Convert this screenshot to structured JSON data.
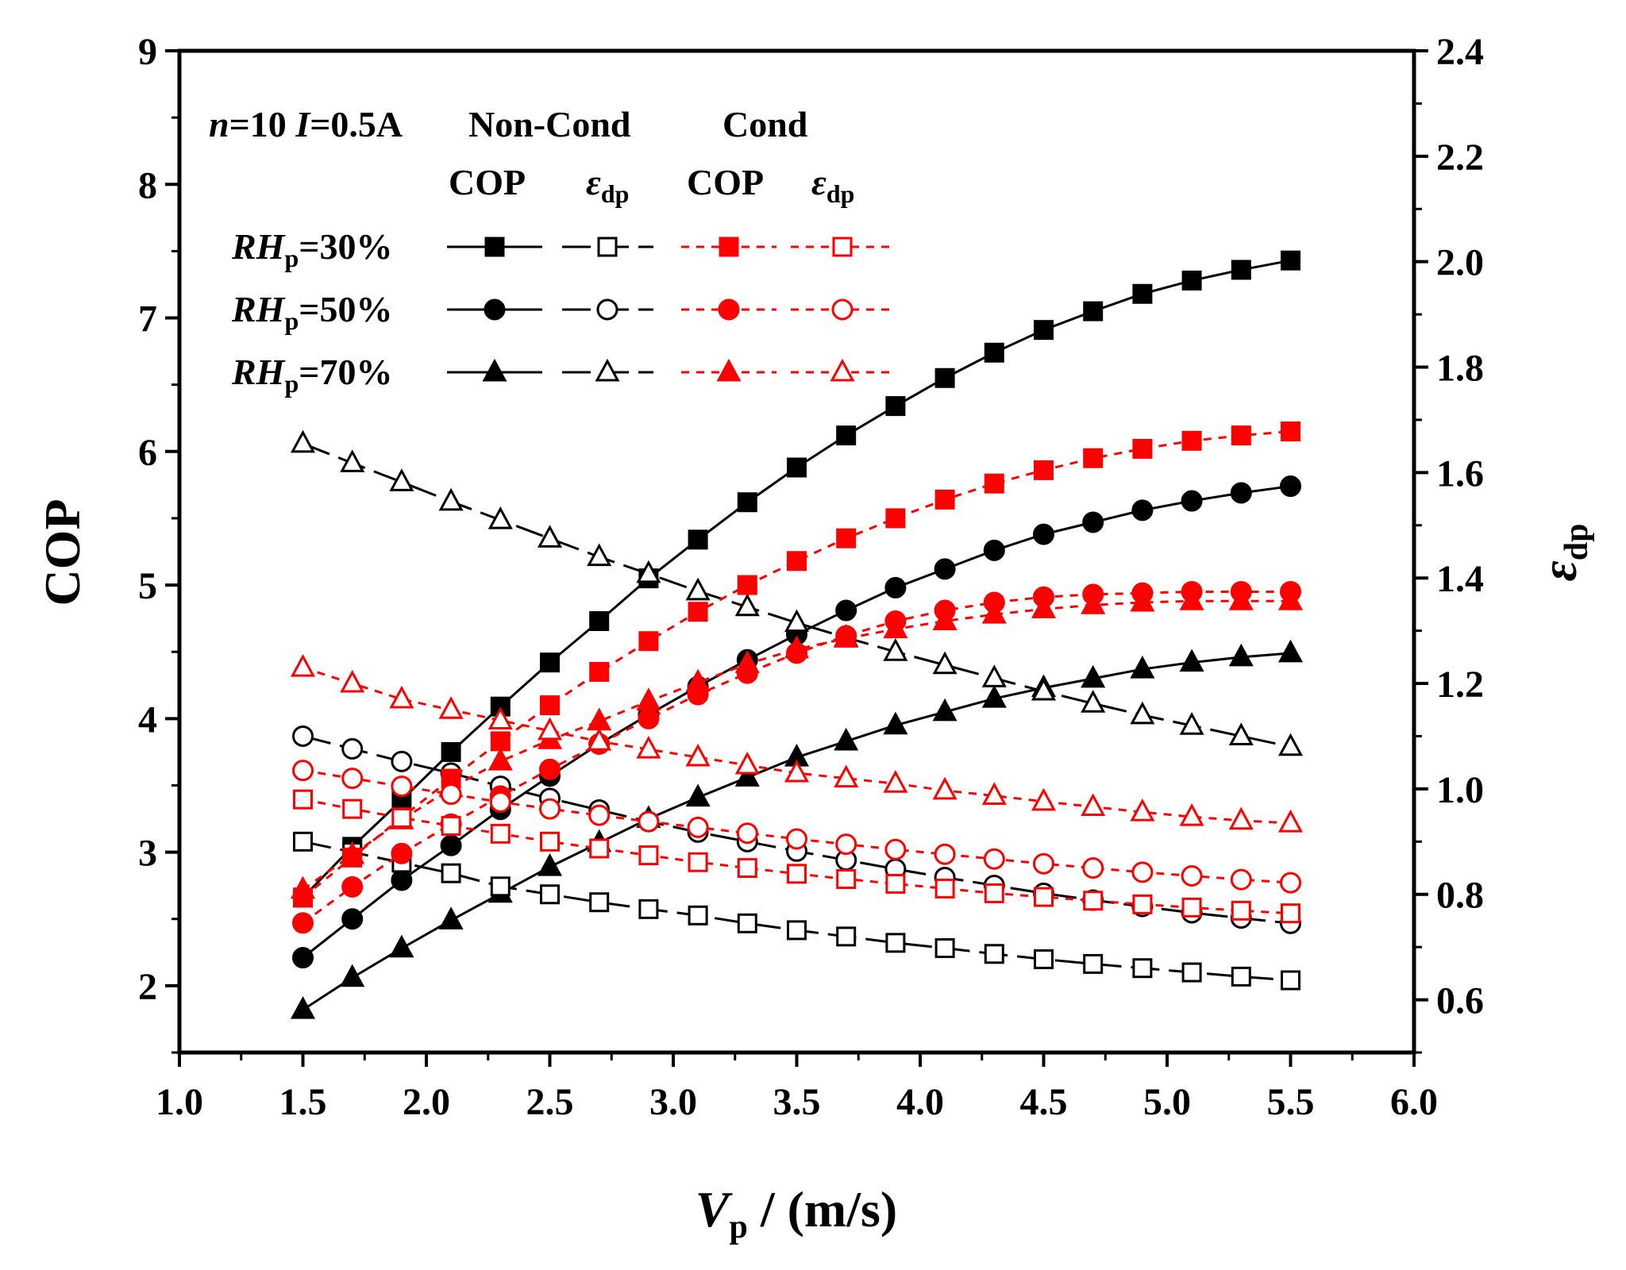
{
  "chart_data": {
    "type": "line",
    "xlabel_main": "V",
    "xlabel_sub": "p",
    "xlabel_unit": " / (m/s)",
    "ylabel": "COP",
    "y2label_main": "ε",
    "y2label_sub": "dp",
    "xlim": [
      1.0,
      6.0
    ],
    "ylim": [
      1.5,
      9
    ],
    "y2lim": [
      0.5,
      2.4
    ],
    "x_ticks": [
      "1.0",
      "1.5",
      "2.0",
      "2.5",
      "3.0",
      "3.5",
      "4.0",
      "4.5",
      "5.0",
      "5.5",
      "6.0"
    ],
    "y_ticks": [
      "2",
      "3",
      "4",
      "5",
      "6",
      "7",
      "8",
      "9"
    ],
    "y2_ticks": [
      "0.6",
      "0.8",
      "1.0",
      "1.2",
      "1.4",
      "1.6",
      "1.8",
      "2.0",
      "2.2",
      "2.4"
    ],
    "x": [
      1.5,
      1.7,
      1.9,
      2.1,
      2.3,
      2.5,
      2.7,
      2.9,
      3.1,
      3.3,
      3.5,
      3.7,
      3.9,
      4.1,
      4.3,
      4.5,
      4.7,
      4.9,
      5.1,
      5.3,
      5.5
    ],
    "legend": {
      "condition_n": "n",
      "condition_n_val": "=10 ",
      "condition_i": "I",
      "condition_i_val": "=0.5A",
      "group_noncond": "Non-Cond",
      "group_cond": "Cond",
      "col_cop": "COP",
      "col_eps": "ε",
      "col_eps_sub": "dp",
      "rh_main": "RH",
      "rh_sub": "p",
      "rows": [
        "=30%",
        "=50%",
        "=70%"
      ]
    },
    "series": [
      {
        "name": "RHp=30% Non-Cond COP",
        "axis": "left",
        "marker": "square",
        "filled": true,
        "color": "#000000",
        "dash": "solid",
        "values": [
          2.66,
          3.04,
          3.39,
          3.75,
          4.09,
          4.42,
          4.73,
          5.05,
          5.34,
          5.62,
          5.88,
          6.12,
          6.34,
          6.55,
          6.74,
          6.91,
          7.05,
          7.18,
          7.28,
          7.36,
          7.43
        ]
      },
      {
        "name": "RHp=50% Non-Cond COP",
        "axis": "left",
        "marker": "circle",
        "filled": true,
        "color": "#000000",
        "dash": "solid",
        "values": [
          2.21,
          2.5,
          2.79,
          3.05,
          3.32,
          3.57,
          3.81,
          4.03,
          4.24,
          4.44,
          4.63,
          4.81,
          4.98,
          5.12,
          5.26,
          5.38,
          5.47,
          5.56,
          5.63,
          5.69,
          5.74
        ]
      },
      {
        "name": "RHp=70% Non-Cond COP",
        "axis": "left",
        "marker": "triangle",
        "filled": true,
        "color": "#000000",
        "dash": "solid",
        "values": [
          1.82,
          2.06,
          2.28,
          2.49,
          2.69,
          2.89,
          3.07,
          3.25,
          3.41,
          3.56,
          3.71,
          3.83,
          3.95,
          4.05,
          4.15,
          4.23,
          4.3,
          4.37,
          4.42,
          4.46,
          4.49
        ]
      },
      {
        "name": "RHp=30% Non-Cond εdp",
        "axis": "right",
        "marker": "square",
        "filled": false,
        "color": "#000000",
        "dash": "longdash",
        "values": [
          0.9,
          0.88,
          0.86,
          0.84,
          0.815,
          0.8,
          0.785,
          0.772,
          0.76,
          0.745,
          0.732,
          0.72,
          0.708,
          0.698,
          0.687,
          0.677,
          0.668,
          0.66,
          0.652,
          0.644,
          0.637
        ]
      },
      {
        "name": "RHp=50% Non-Cond εdp",
        "axis": "right",
        "marker": "circle",
        "filled": false,
        "color": "#000000",
        "dash": "longdash",
        "values": [
          1.1,
          1.076,
          1.052,
          1.03,
          1.005,
          0.982,
          0.96,
          0.938,
          0.918,
          0.9,
          0.882,
          0.865,
          0.848,
          0.832,
          0.817,
          0.802,
          0.789,
          0.777,
          0.765,
          0.755,
          0.745
        ]
      },
      {
        "name": "RHp=70% Non-Cond εdp",
        "axis": "right",
        "marker": "triangle",
        "filled": false,
        "color": "#000000",
        "dash": "longdash",
        "values": [
          1.655,
          1.618,
          1.582,
          1.545,
          1.51,
          1.475,
          1.44,
          1.408,
          1.375,
          1.345,
          1.315,
          1.287,
          1.26,
          1.235,
          1.21,
          1.185,
          1.162,
          1.14,
          1.12,
          1.1,
          1.08
        ]
      },
      {
        "name": "RHp=30% Cond COP",
        "axis": "left",
        "marker": "square",
        "filled": true,
        "color": "#ff0000",
        "dash": "shortdash",
        "values": [
          2.66,
          2.96,
          3.26,
          3.55,
          3.83,
          4.1,
          4.35,
          4.58,
          4.8,
          5.0,
          5.18,
          5.35,
          5.5,
          5.64,
          5.76,
          5.86,
          5.95,
          6.02,
          6.08,
          6.12,
          6.15
        ]
      },
      {
        "name": "RHp=50% Cond COP",
        "axis": "left",
        "marker": "circle",
        "filled": true,
        "color": "#ff0000",
        "dash": "shortdash",
        "values": [
          2.47,
          2.74,
          2.99,
          3.21,
          3.42,
          3.62,
          3.81,
          4.0,
          4.18,
          4.34,
          4.49,
          4.62,
          4.73,
          4.81,
          4.87,
          4.91,
          4.93,
          4.94,
          4.95,
          4.95,
          4.95
        ]
      },
      {
        "name": "RHp=70% Cond COP",
        "axis": "left",
        "marker": "triangle",
        "filled": true,
        "color": "#ff0000",
        "dash": "shortdash",
        "values": [
          2.72,
          2.98,
          3.24,
          3.48,
          3.68,
          3.84,
          3.98,
          4.13,
          4.27,
          4.41,
          4.52,
          4.6,
          4.67,
          4.73,
          4.78,
          4.82,
          4.85,
          4.87,
          4.88,
          4.88,
          4.88
        ]
      },
      {
        "name": "RHp=30% Cond εdp",
        "axis": "right",
        "marker": "square",
        "filled": false,
        "color": "#ff0000",
        "dash": "shortdash",
        "values": [
          0.98,
          0.962,
          0.945,
          0.93,
          0.915,
          0.9,
          0.887,
          0.874,
          0.861,
          0.85,
          0.839,
          0.829,
          0.82,
          0.811,
          0.802,
          0.795,
          0.788,
          0.781,
          0.775,
          0.769,
          0.764
        ]
      },
      {
        "name": "RHp=50% Cond εdp",
        "axis": "right",
        "marker": "circle",
        "filled": false,
        "color": "#ff0000",
        "dash": "shortdash",
        "values": [
          1.035,
          1.02,
          1.005,
          0.99,
          0.975,
          0.962,
          0.95,
          0.938,
          0.927,
          0.916,
          0.905,
          0.895,
          0.885,
          0.876,
          0.867,
          0.858,
          0.85,
          0.842,
          0.835,
          0.828,
          0.822
        ]
      },
      {
        "name": "RHp=70% Cond εdp",
        "axis": "right",
        "marker": "triangle",
        "filled": false,
        "color": "#ff0000",
        "dash": "shortdash",
        "values": [
          1.23,
          1.2,
          1.17,
          1.15,
          1.13,
          1.11,
          1.09,
          1.075,
          1.06,
          1.045,
          1.03,
          1.02,
          1.01,
          0.997,
          0.987,
          0.976,
          0.966,
          0.956,
          0.947,
          0.94,
          0.935
        ]
      }
    ]
  }
}
